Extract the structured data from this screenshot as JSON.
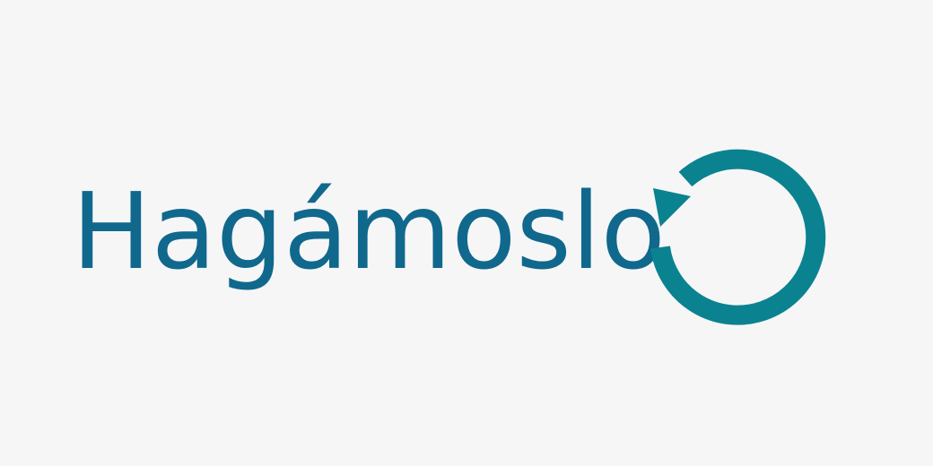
{
  "logo": {
    "text": "Hagámoslo",
    "text_color": "#10688d",
    "icon_name": "refresh-arrow-icon",
    "icon_color": "#0b8290",
    "background_color": "#f6f6f7"
  }
}
